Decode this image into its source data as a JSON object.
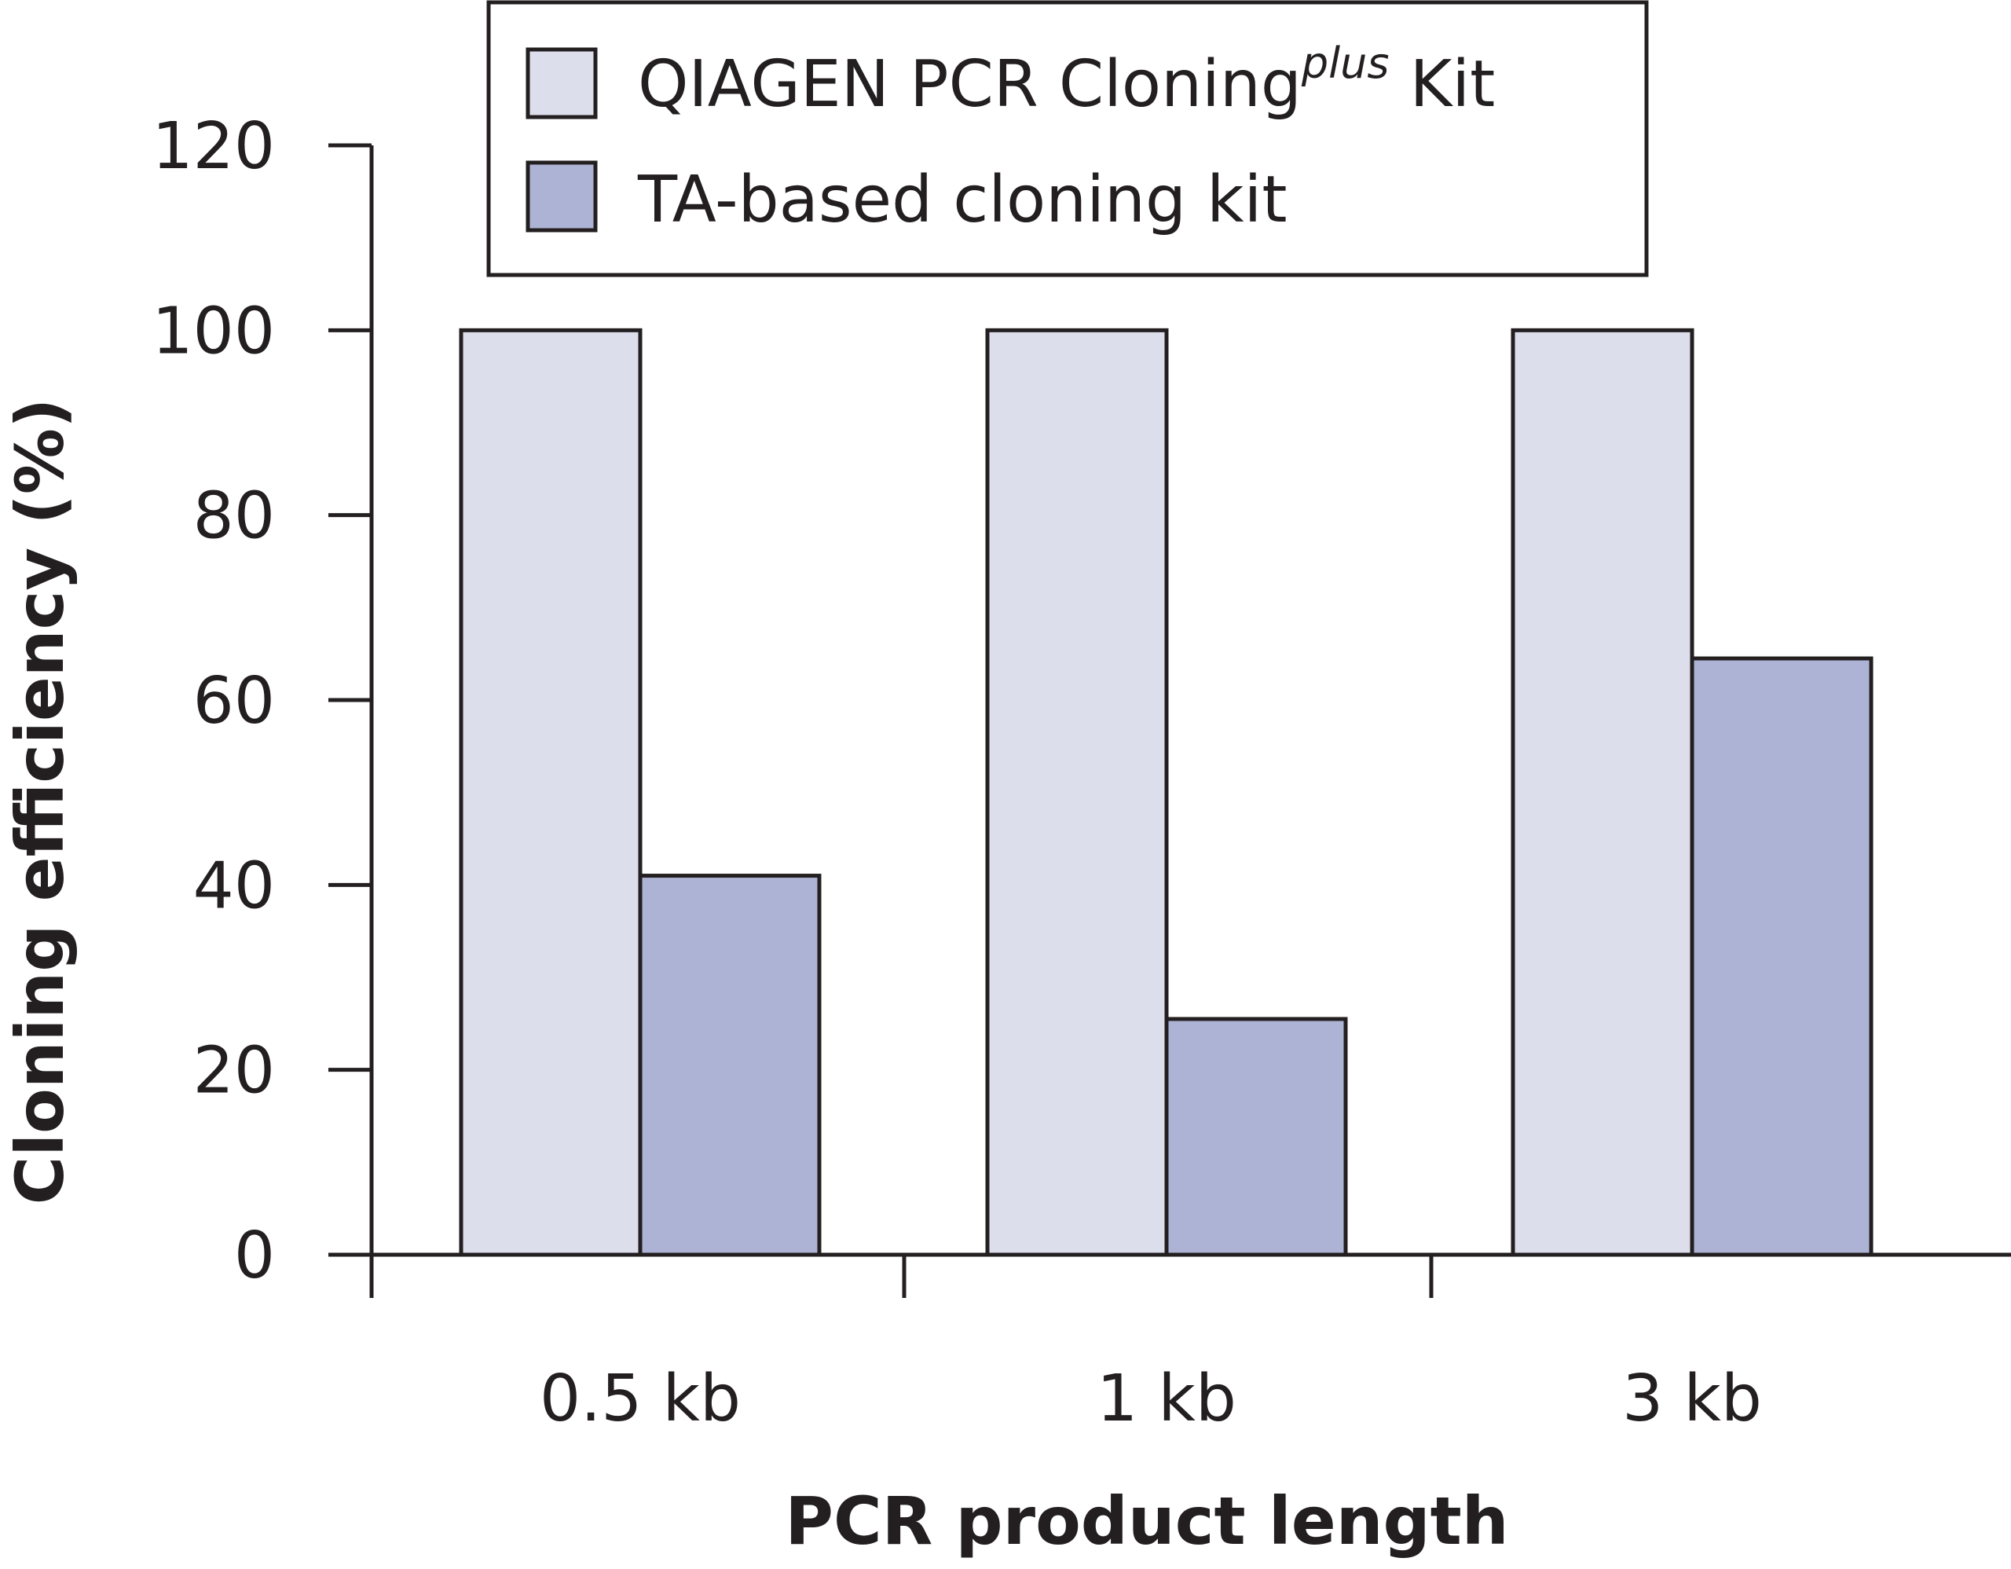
{
  "chart_data": {
    "type": "bar",
    "categories": [
      "0.5 kb",
      "1 kb",
      "3 kb"
    ],
    "series": [
      {
        "name": "QIAGEN PCR Cloning",
        "name_superscript": "plus",
        "name_suffix": " Kit",
        "values": [
          100,
          100,
          100
        ],
        "color": "#dcdeec"
      },
      {
        "name": "TA-based cloning kit",
        "values": [
          41,
          25.5,
          64.5
        ],
        "color": "#adb3d4"
      }
    ],
    "title": "",
    "xlabel": "PCR product length",
    "ylabel": "Cloning efficiency (%)",
    "ylim": [
      0,
      120
    ],
    "yticks": [
      "0",
      "20",
      "40",
      "60",
      "80",
      "100",
      "120"
    ],
    "grid": false,
    "legend_position": "top-center",
    "stroke_color": "#231f20"
  }
}
